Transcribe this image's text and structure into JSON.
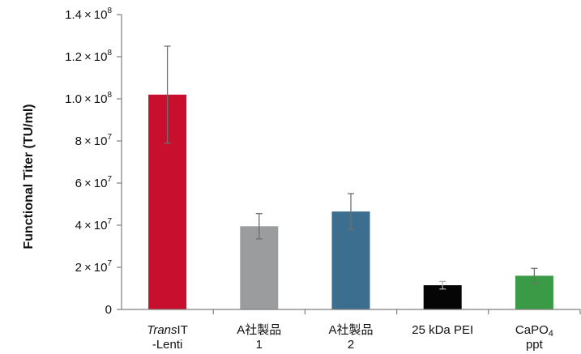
{
  "chart_data": {
    "type": "bar",
    "title": "",
    "xlabel": "",
    "ylabel": "Functional Titer (TU/ml)",
    "ylim": [
      0,
      140000000
    ],
    "y_ticks": [
      {
        "value": 140000000,
        "mant": "1.4",
        "exp": "8"
      },
      {
        "value": 120000000,
        "mant": "1.2",
        "exp": "8"
      },
      {
        "value": 100000000,
        "mant": "1.0",
        "exp": "8"
      },
      {
        "value": 80000000,
        "mant": "8",
        "exp": "7"
      },
      {
        "value": 60000000,
        "mant": "6",
        "exp": "7"
      },
      {
        "value": 40000000,
        "mant": "4",
        "exp": "7"
      },
      {
        "value": 20000000,
        "mant": "2",
        "exp": "7"
      },
      {
        "value": 0,
        "mant": "0",
        "exp": ""
      }
    ],
    "categories": [
      {
        "lines": [
          {
            "italic": "Trans",
            "plain": "IT"
          },
          {
            "italic": "",
            "plain": "-Lenti"
          }
        ]
      },
      {
        "lines": [
          {
            "italic": "",
            "plain": "A社製品"
          },
          {
            "italic": "",
            "plain": "1"
          }
        ]
      },
      {
        "lines": [
          {
            "italic": "",
            "plain": "A社製品"
          },
          {
            "italic": "",
            "plain": "2"
          }
        ]
      },
      {
        "lines": [
          {
            "italic": "",
            "plain": "25 kDa PEI"
          }
        ]
      },
      {
        "lines": [
          {
            "italic": "",
            "plain": "CaPO",
            "sub": "4"
          },
          {
            "italic": "",
            "plain": "ppt"
          }
        ]
      }
    ],
    "values": [
      102000000,
      39500000,
      46500000,
      11500000,
      16000000
    ],
    "errors": [
      23000000,
      6000000,
      8500000,
      1800000,
      3500000
    ],
    "colors": [
      "#c8102e",
      "#9b9c9e",
      "#3b6e8f",
      "#050505",
      "#3a9a45"
    ],
    "grid": false,
    "legend": "none"
  }
}
